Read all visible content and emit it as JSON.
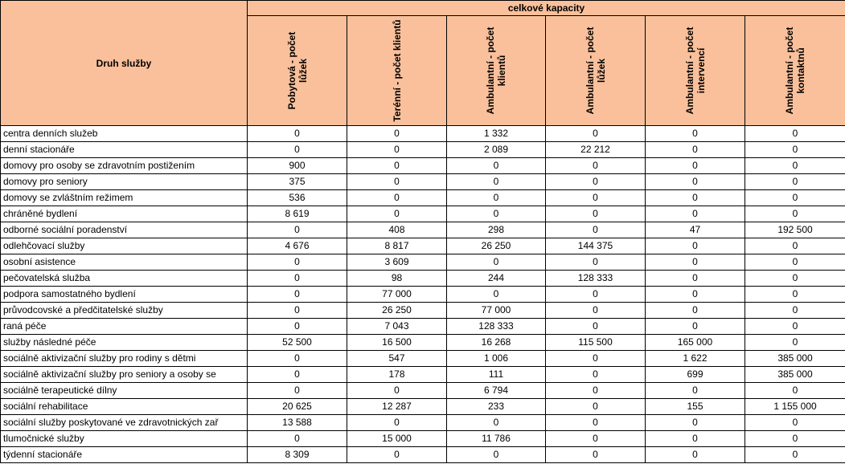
{
  "header": {
    "row_header": "Druh služby",
    "group_header": "celkové kapacity",
    "columns": [
      "Pobytová - počet lůžek",
      "Terénní - počet klientů",
      "Ambulantní - počet klientů",
      "Ambulantní - počet lůžek",
      "Ambulantní - počet intervencí",
      "Ambulantní - počet kontaktnů"
    ]
  },
  "rows": [
    {
      "name": "centra denních služeb",
      "values": [
        "0",
        "0",
        "1 332",
        "0",
        "0",
        "0"
      ]
    },
    {
      "name": "denní stacionáře",
      "values": [
        "0",
        "0",
        "2 089",
        "22 212",
        "0",
        "0"
      ]
    },
    {
      "name": "domovy pro osoby se zdravotním postižením",
      "values": [
        "900",
        "0",
        "0",
        "0",
        "0",
        "0"
      ]
    },
    {
      "name": "domovy pro seniory",
      "values": [
        "375",
        "0",
        "0",
        "0",
        "0",
        "0"
      ]
    },
    {
      "name": "domovy se zvláštním režimem",
      "values": [
        "536",
        "0",
        "0",
        "0",
        "0",
        "0"
      ]
    },
    {
      "name": "chráněné bydlení",
      "values": [
        "8 619",
        "0",
        "0",
        "0",
        "0",
        "0"
      ]
    },
    {
      "name": "odborné sociální poradenství",
      "values": [
        "0",
        "408",
        "298",
        "0",
        "47",
        "192 500"
      ]
    },
    {
      "name": "odlehčovací služby",
      "values": [
        "4 676",
        "8 817",
        "26 250",
        "144 375",
        "0",
        "0"
      ]
    },
    {
      "name": "osobní asistence",
      "values": [
        "0",
        "3 609",
        "0",
        "0",
        "0",
        "0"
      ]
    },
    {
      "name": "pečovatelská služba",
      "values": [
        "0",
        "98",
        "244",
        "128 333",
        "0",
        "0"
      ]
    },
    {
      "name": "podpora samostatného bydlení",
      "values": [
        "0",
        "77 000",
        "0",
        "0",
        "0",
        "0"
      ]
    },
    {
      "name": "průvodcovské a předčitatelské služby",
      "values": [
        "0",
        "26 250",
        "77 000",
        "0",
        "0",
        "0"
      ]
    },
    {
      "name": "raná péče",
      "values": [
        "0",
        "7 043",
        "128 333",
        "0",
        "0",
        "0"
      ]
    },
    {
      "name": "služby následné péče",
      "values": [
        "52 500",
        "16 500",
        "16 268",
        "115 500",
        "165 000",
        "0"
      ]
    },
    {
      "name": "sociálně aktivizační služby pro rodiny s dětmi",
      "values": [
        "0",
        "547",
        "1 006",
        "0",
        "1 622",
        "385 000"
      ]
    },
    {
      "name": "sociálně aktivizační služby pro seniory a osoby se",
      "values": [
        "0",
        "178",
        "111",
        "0",
        "699",
        "385 000"
      ]
    },
    {
      "name": "sociálně terapeutické dílny",
      "values": [
        "0",
        "0",
        "6 794",
        "0",
        "0",
        "0"
      ]
    },
    {
      "name": "sociální rehabilitace",
      "values": [
        "20 625",
        "12 287",
        "233",
        "0",
        "155",
        "1 155 000"
      ]
    },
    {
      "name": "sociální služby poskytované ve zdravotnických zař",
      "values": [
        "13 588",
        "0",
        "0",
        "0",
        "0",
        "0"
      ]
    },
    {
      "name": "tlumočnické služby",
      "values": [
        "0",
        "15 000",
        "11 786",
        "0",
        "0",
        "0"
      ]
    },
    {
      "name": "týdenní stacionáře",
      "values": [
        "8 309",
        "0",
        "0",
        "0",
        "0",
        "0"
      ]
    }
  ]
}
